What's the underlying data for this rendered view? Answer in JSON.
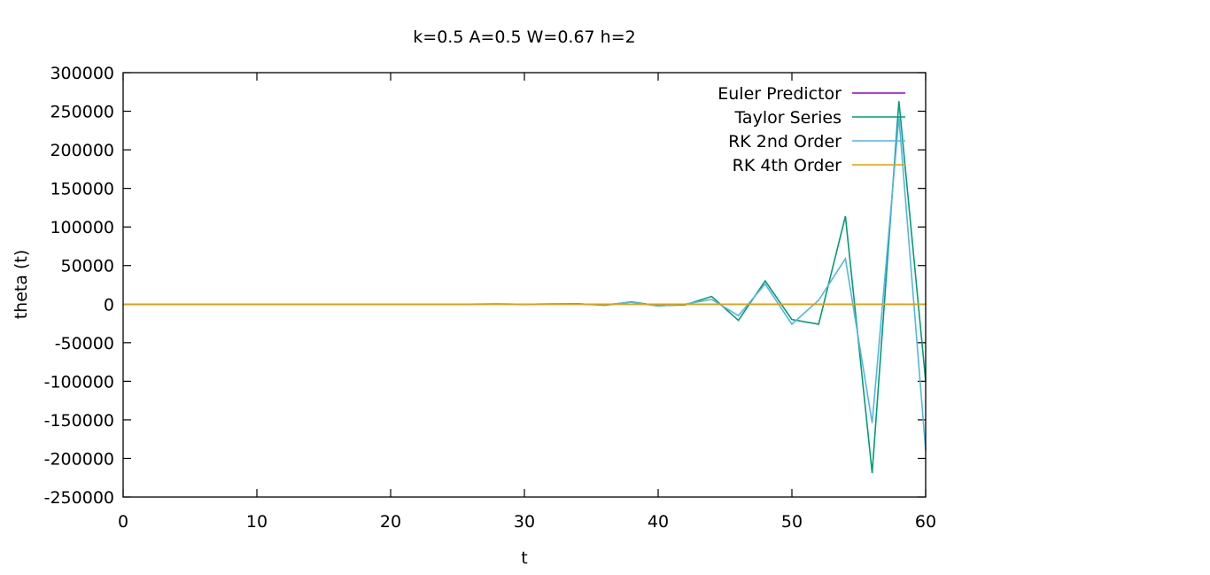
{
  "chart_data": {
    "type": "line",
    "title": "k=0.5 A=0.5 W=0.67 h=2",
    "xlabel": "t",
    "ylabel": "theta (t)",
    "xlim": [
      0,
      60
    ],
    "ylim": [
      -250000,
      300000
    ],
    "xticks": [
      0,
      10,
      20,
      30,
      40,
      50,
      60
    ],
    "yticks": [
      -250000,
      -200000,
      -150000,
      -100000,
      -50000,
      0,
      50000,
      100000,
      150000,
      200000,
      250000,
      300000
    ],
    "grid": false,
    "legend_position": "top-right",
    "series": [
      {
        "name": "Euler Predictor",
        "color": "#9400d3",
        "x": [
          0,
          2,
          4,
          6,
          8,
          10,
          12,
          14,
          16,
          18,
          20,
          22,
          24,
          26,
          28,
          30,
          32,
          34,
          36,
          38,
          40,
          42,
          44,
          46,
          48,
          50,
          52,
          54,
          56,
          58,
          60
        ],
        "y": [
          0,
          0,
          0,
          0,
          0,
          0,
          0,
          0,
          0,
          0,
          0,
          0,
          0,
          0,
          0,
          0,
          0,
          0,
          0,
          0,
          0,
          0,
          0,
          0,
          0,
          0,
          0,
          0,
          0,
          0,
          0
        ]
      },
      {
        "name": "Taylor Series",
        "color": "#009e73",
        "x": [
          0,
          2,
          4,
          6,
          8,
          10,
          12,
          14,
          16,
          18,
          20,
          22,
          24,
          26,
          28,
          30,
          32,
          34,
          36,
          38,
          40,
          42,
          44,
          46,
          48,
          50,
          52,
          54,
          56,
          58,
          60
        ],
        "y": [
          0,
          0,
          0,
          0,
          0,
          0,
          0,
          0,
          0,
          0,
          0,
          0,
          0,
          0,
          300,
          -200,
          300,
          500,
          -1500,
          3000,
          -2000,
          -1000,
          10000,
          -21000,
          30000,
          -20000,
          -26000,
          114000,
          -219000,
          263000,
          -100000
        ]
      },
      {
        "name": "RK 2nd Order",
        "color": "#56b4e9",
        "x": [
          0,
          2,
          4,
          6,
          8,
          10,
          12,
          14,
          16,
          18,
          20,
          22,
          24,
          26,
          28,
          30,
          32,
          34,
          36,
          38,
          40,
          42,
          44,
          46,
          48,
          50,
          52,
          54,
          56,
          58,
          60
        ],
        "y": [
          0,
          0,
          0,
          0,
          0,
          0,
          0,
          0,
          0,
          0,
          0,
          0,
          0,
          0,
          200,
          -100,
          200,
          300,
          -1000,
          2500,
          -2500,
          0,
          6000,
          -15000,
          26000,
          -26000,
          5000,
          59000,
          -154000,
          242000,
          -190000
        ]
      },
      {
        "name": "RK 4th Order",
        "color": "#e69f00",
        "x": [
          0,
          2,
          4,
          6,
          8,
          10,
          12,
          14,
          16,
          18,
          20,
          22,
          24,
          26,
          28,
          30,
          32,
          34,
          36,
          38,
          40,
          42,
          44,
          46,
          48,
          50,
          52,
          54,
          56,
          58,
          60
        ],
        "y": [
          0,
          0,
          0,
          0,
          0,
          0,
          0,
          0,
          0,
          0,
          0,
          0,
          0,
          0,
          0,
          0,
          0,
          0,
          0,
          0,
          0,
          0,
          0,
          0,
          0,
          0,
          0,
          0,
          0,
          0,
          0
        ]
      }
    ]
  }
}
